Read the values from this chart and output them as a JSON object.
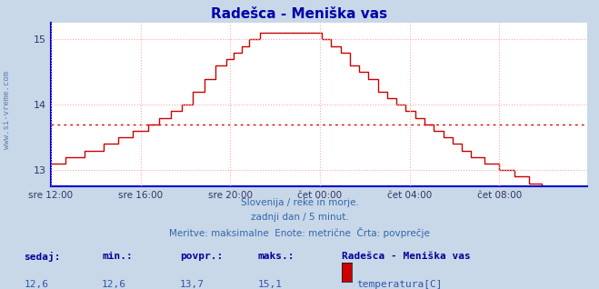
{
  "title": "Radešca - Meniška vas",
  "title_color": "#0000aa",
  "bg_color": "#c8d8e8",
  "plot_bg_color": "#ffffff",
  "grid_color": "#ffaaaa",
  "grid_style": ":",
  "line_color": "#cc0000",
  "avg_line_color": "#dd0000",
  "avg_value": 13.7,
  "ylim_min": 12.75,
  "ylim_max": 15.25,
  "yticks": [
    13,
    14,
    15
  ],
  "x_labels": [
    "sre 12:00",
    "sre 16:00",
    "sre 20:00",
    "čet 00:00",
    "čet 04:00",
    "čet 08:00"
  ],
  "x_tick_positions": [
    0,
    48,
    96,
    144,
    192,
    240
  ],
  "total_points": 288,
  "subtitle1": "Slovenija / reke in morje.",
  "subtitle2": "zadnji dan / 5 minut.",
  "subtitle3": "Meritve: maksimalne  Enote: metrične  Črta: povprečje",
  "subtitle_color": "#3366aa",
  "label_sedaj": "sedaj:",
  "label_min": "min.:",
  "label_povpr": "povpr.:",
  "label_maks": "maks.:",
  "val_sedaj": "12,6",
  "val_min": "12,6",
  "val_povpr": "13,7",
  "val_maks": "15,1",
  "legend_title": "Radešca - Meniška vas",
  "legend_label": "temperatura[C]",
  "legend_color": "#cc0000",
  "watermark": "www.si-vreme.com",
  "axis_color": "#0000cc",
  "tick_color": "#333366",
  "spine_color": "#3333aa",
  "bottom_label_color": "#000099",
  "bottom_value_color": "#3355aa"
}
